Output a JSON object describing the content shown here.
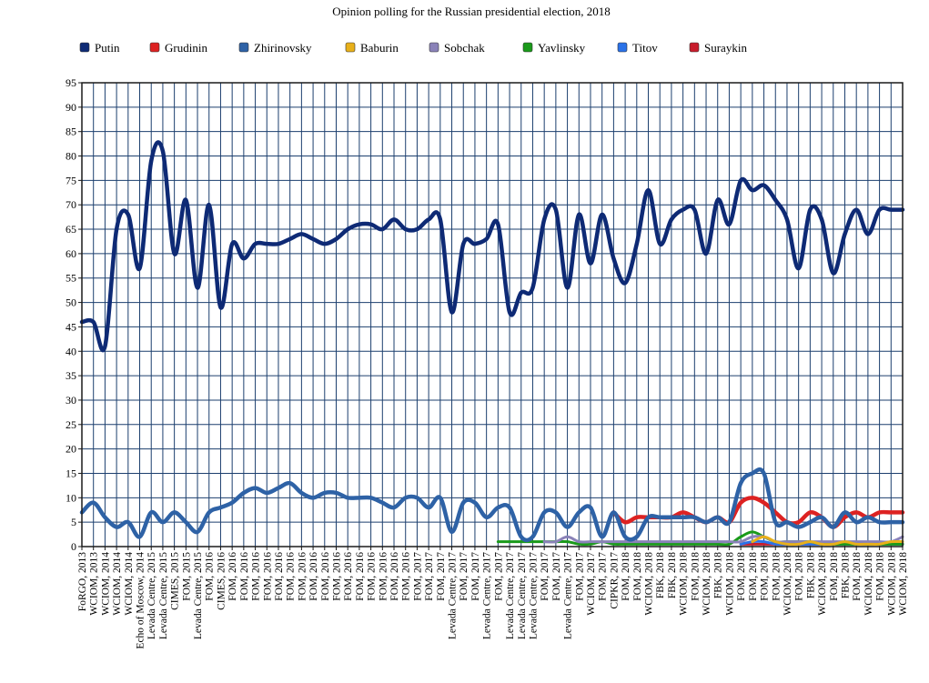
{
  "chart_data": {
    "type": "line",
    "title": "Opinion polling for the Russian presidential election, 2018",
    "xlabel": "",
    "ylabel": "",
    "ylim": [
      0,
      95
    ],
    "yticks": [
      0,
      5,
      10,
      15,
      20,
      25,
      30,
      35,
      40,
      45,
      50,
      55,
      60,
      65,
      70,
      75,
      80,
      85,
      90,
      95
    ],
    "grid": true,
    "legend_position": "top",
    "categories": [
      "FoRGO, 2013",
      "WCIOM, 2013",
      "WCIOM, 2014",
      "WCIOM, 2014",
      "WCIOM, 2014",
      "Echo of Moscow, 2014",
      "Levada Centre, 2015",
      "Levada Centre, 2015",
      "CIMES, 2015",
      "FOM, 2015",
      "Levada Centre, 2015",
      "FOM, 2016",
      "CIMES, 2016",
      "FOM, 2016",
      "FOM, 2016",
      "FOM, 2016",
      "FOM, 2016",
      "FOM, 2016",
      "FOM, 2016",
      "FOM, 2016",
      "FOM, 2016",
      "FOM, 2016",
      "FOM, 2016",
      "FOM, 2016",
      "FOM, 2016",
      "FOM, 2016",
      "FOM, 2016",
      "FOM, 2016",
      "FOM, 2016",
      "FOM, 2017",
      "FOM, 2017",
      "FOM, 2017",
      "Levada Centre, 2017",
      "FOM, 2017",
      "FOM, 2017",
      "Levada Centre, 2017",
      "FOM, 2017",
      "Levada Centre, 2017",
      "Levada Centre, 2017",
      "Levada Centre, 2017",
      "FOM, 2017",
      "FOM, 2017",
      "Levada Centre, 2017",
      "FOM, 2017",
      "WCIOM, 2017",
      "FOM, 2017",
      "CIPKR, 2017",
      "FOM, 2018",
      "FOM, 2018",
      "WCIOM, 2018",
      "FBK, 2018",
      "FBK, 2018",
      "WCIOM, 2018",
      "FOM, 2018",
      "WCIOM, 2018",
      "FBK, 2018",
      "WCIOM, 2018",
      "FOM, 2018",
      "FOM, 2018",
      "FOM, 2018",
      "FOM, 2018",
      "WCIOM, 2018",
      "FOM, 2018",
      "FBK, 2018",
      "WCIOM, 2018",
      "FOM, 2018",
      "FBK, 2018",
      "FOM, 2018",
      "WCIOM, 2018",
      "FOM, 2018",
      "WCIOM, 2018",
      "WCIOM, 2018"
    ],
    "series": [
      {
        "name": "Putin",
        "color": "#0e2a75",
        "values": [
          46,
          46,
          41,
          65,
          68,
          57,
          79,
          81,
          60,
          71,
          53,
          70,
          49,
          62,
          59,
          62,
          62,
          62,
          63,
          64,
          63,
          62,
          63,
          65,
          66,
          66,
          65,
          67,
          65,
          65,
          67,
          67,
          48,
          62,
          62,
          63,
          66,
          48,
          52,
          53,
          67,
          69,
          53,
          68,
          58,
          68,
          59,
          54,
          62,
          73,
          62,
          67,
          69,
          69,
          60,
          71,
          66,
          75,
          73,
          74,
          71,
          67,
          57,
          69,
          67,
          56,
          64,
          69,
          64,
          69,
          69,
          69
        ]
      },
      {
        "name": "Grudinin",
        "color": "#dd2222",
        "values": [
          null,
          null,
          null,
          null,
          null,
          null,
          null,
          null,
          null,
          null,
          null,
          null,
          null,
          null,
          null,
          null,
          null,
          null,
          null,
          null,
          null,
          null,
          null,
          null,
          null,
          null,
          null,
          null,
          null,
          null,
          null,
          null,
          null,
          null,
          null,
          null,
          null,
          null,
          null,
          null,
          null,
          null,
          null,
          null,
          null,
          null,
          7,
          5,
          6,
          6,
          6,
          6,
          7,
          6,
          5,
          6,
          5,
          9,
          10,
          9,
          7,
          5,
          5,
          7,
          6,
          4,
          6,
          7,
          6,
          7,
          7,
          7
        ]
      },
      {
        "name": "Zhirinovsky",
        "color": "#2e62a6",
        "values": [
          7,
          9,
          6,
          4,
          5,
          2,
          7,
          5,
          7,
          5,
          3,
          7,
          8,
          9,
          11,
          12,
          11,
          12,
          13,
          11,
          10,
          11,
          11,
          10,
          10,
          10,
          9,
          8,
          10,
          10,
          8,
          10,
          3,
          9,
          9,
          6,
          8,
          8,
          2,
          2,
          7,
          7,
          4,
          7,
          8,
          2,
          7,
          2,
          2,
          6,
          6,
          6,
          6,
          6,
          5,
          6,
          5,
          13,
          15,
          15,
          5,
          5,
          4,
          5,
          6,
          4,
          7,
          5,
          6,
          5,
          5,
          5
        ]
      },
      {
        "name": "Baburin",
        "color": "#e8b01a",
        "values": [
          null,
          null,
          null,
          null,
          null,
          null,
          null,
          null,
          null,
          null,
          null,
          null,
          null,
          null,
          null,
          null,
          null,
          null,
          null,
          null,
          null,
          null,
          null,
          null,
          null,
          null,
          null,
          null,
          null,
          null,
          null,
          null,
          null,
          null,
          null,
          null,
          null,
          null,
          null,
          null,
          null,
          null,
          null,
          null,
          null,
          null,
          null,
          null,
          null,
          null,
          null,
          null,
          null,
          null,
          null,
          null,
          null,
          null,
          1,
          2,
          1,
          0.5,
          0.5,
          1,
          0.5,
          0.5,
          1,
          0.5,
          0.5,
          0.5,
          1,
          1
        ]
      },
      {
        "name": "Sobchak",
        "color": "#8a82b8",
        "values": [
          null,
          null,
          null,
          null,
          null,
          null,
          null,
          null,
          null,
          null,
          null,
          null,
          null,
          null,
          null,
          null,
          null,
          null,
          null,
          null,
          null,
          null,
          null,
          null,
          null,
          null,
          null,
          null,
          null,
          null,
          null,
          null,
          null,
          null,
          null,
          null,
          null,
          null,
          null,
          null,
          1,
          1,
          2,
          1,
          1,
          1,
          1,
          1,
          1,
          1,
          1,
          1,
          1,
          1,
          1,
          1,
          1,
          1,
          2,
          2,
          1,
          1,
          1,
          1,
          1,
          1,
          1,
          1,
          1,
          1,
          1,
          2
        ]
      },
      {
        "name": "Yavlinsky",
        "color": "#1a9a1a",
        "values": [
          null,
          null,
          null,
          null,
          null,
          null,
          null,
          null,
          null,
          null,
          null,
          null,
          null,
          null,
          null,
          null,
          null,
          null,
          null,
          null,
          null,
          null,
          null,
          null,
          null,
          null,
          null,
          null,
          null,
          null,
          null,
          null,
          null,
          null,
          null,
          null,
          1,
          1,
          1,
          1,
          1,
          1,
          1,
          0.5,
          0.5,
          1,
          0.5,
          0.5,
          0.5,
          0.5,
          0.5,
          0.5,
          0.5,
          0.5,
          0.5,
          0.5,
          0.5,
          2,
          3,
          2,
          1,
          1,
          1,
          1,
          0.5,
          0.5,
          0.5,
          0.5,
          0.5,
          0.5,
          0.5,
          0.5
        ]
      },
      {
        "name": "Titov",
        "color": "#2a72e8",
        "values": [
          null,
          null,
          null,
          null,
          null,
          null,
          null,
          null,
          null,
          null,
          null,
          null,
          null,
          null,
          null,
          null,
          null,
          null,
          null,
          null,
          null,
          null,
          null,
          null,
          null,
          null,
          null,
          null,
          null,
          null,
          null,
          null,
          null,
          null,
          null,
          null,
          null,
          null,
          null,
          null,
          null,
          null,
          null,
          null,
          null,
          null,
          null,
          null,
          null,
          null,
          null,
          null,
          null,
          null,
          null,
          null,
          null,
          0.5,
          1,
          1,
          0.5,
          0.5,
          0.5,
          0.5,
          0.5,
          0.5,
          0.5,
          0.5,
          0.5,
          0.5,
          0.5,
          0.5
        ]
      },
      {
        "name": "Suraykin",
        "color": "#c81c2c",
        "values": [
          null,
          null,
          null,
          null,
          null,
          null,
          null,
          null,
          null,
          null,
          null,
          null,
          null,
          null,
          null,
          null,
          null,
          null,
          null,
          null,
          null,
          null,
          null,
          null,
          null,
          null,
          null,
          null,
          null,
          null,
          null,
          null,
          null,
          null,
          null,
          null,
          null,
          null,
          null,
          null,
          null,
          null,
          null,
          null,
          null,
          null,
          null,
          null,
          null,
          null,
          null,
          null,
          null,
          null,
          null,
          null,
          null,
          0.5,
          0.5,
          0.5,
          0.5,
          0.5,
          0.5,
          0.5,
          0.5,
          0.5,
          0.5,
          0.5,
          0.5,
          0.5,
          0.5,
          0.5
        ]
      }
    ]
  }
}
